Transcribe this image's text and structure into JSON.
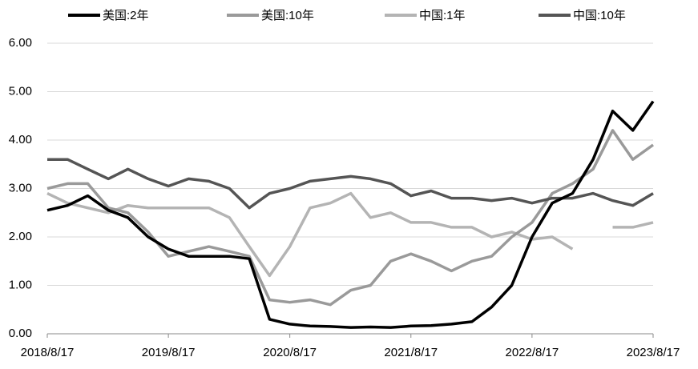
{
  "chart_data": {
    "type": "line",
    "x": [
      "2018/8/17",
      "2018/10/17",
      "2018/12/17",
      "2019/2/17",
      "2019/4/17",
      "2019/6/17",
      "2019/8/17",
      "2019/10/17",
      "2019/12/17",
      "2020/2/17",
      "2020/4/17",
      "2020/6/17",
      "2020/8/17",
      "2020/10/17",
      "2020/12/17",
      "2021/2/17",
      "2021/4/17",
      "2021/6/17",
      "2021/8/17",
      "2021/10/17",
      "2021/12/17",
      "2022/2/17",
      "2022/4/17",
      "2022/6/17",
      "2022/8/17",
      "2022/10/17",
      "2022/12/17",
      "2023/2/17",
      "2023/4/17",
      "2023/6/17",
      "2023/8/17"
    ],
    "series": [
      {
        "name": "美国:2年",
        "color": "#000000",
        "values": [
          2.55,
          2.65,
          2.85,
          2.55,
          2.4,
          2.0,
          1.75,
          1.6,
          1.6,
          1.6,
          1.55,
          0.3,
          0.2,
          0.16,
          0.15,
          0.13,
          0.14,
          0.13,
          0.16,
          0.17,
          0.2,
          0.25,
          0.55,
          1.0,
          2.0,
          2.7,
          2.9,
          3.6,
          4.6,
          4.2,
          4.8
        ]
      },
      {
        "name": "美国:10年",
        "color": "#9a9a9a",
        "values": [
          3.0,
          3.1,
          3.1,
          2.6,
          2.5,
          2.1,
          1.6,
          1.7,
          1.8,
          1.7,
          1.6,
          0.7,
          0.65,
          0.7,
          0.6,
          0.9,
          1.0,
          1.5,
          1.65,
          1.5,
          1.3,
          1.5,
          1.6,
          2.0,
          2.3,
          2.9,
          3.1,
          3.4,
          4.2,
          3.6,
          3.9
        ]
      },
      {
        "name": "中国:1年",
        "color": "#b4b4b4",
        "values": [
          2.9,
          2.7,
          2.6,
          2.5,
          2.65,
          2.6,
          2.6,
          2.6,
          2.6,
          2.4,
          1.8,
          1.2,
          1.8,
          2.6,
          2.7,
          2.9,
          2.4,
          2.5,
          2.3,
          2.3,
          2.2,
          2.2,
          2.0,
          2.1,
          1.95,
          2.0,
          1.75,
          null,
          2.2,
          2.2,
          2.3
        ]
      },
      {
        "name": "中国:10年",
        "color": "#555555",
        "values": [
          3.6,
          3.6,
          3.4,
          3.2,
          3.4,
          3.2,
          3.05,
          3.2,
          3.15,
          3.0,
          2.6,
          2.9,
          3.0,
          3.15,
          3.2,
          3.25,
          3.2,
          3.1,
          2.85,
          2.95,
          2.8,
          2.8,
          2.75,
          2.8,
          2.7,
          2.8,
          2.8,
          2.9,
          2.75,
          2.65,
          2.9
        ]
      }
    ],
    "xlim": [
      "2018/8/17",
      "2023/8/17"
    ],
    "xticks": [
      "2018/8/17",
      "2019/8/17",
      "2020/8/17",
      "2021/8/17",
      "2022/8/17",
      "2023/8/17"
    ],
    "ylim": [
      0,
      6
    ],
    "yticks": [
      {
        "value": 0,
        "label": "0.00"
      },
      {
        "value": 1,
        "label": "1.00"
      },
      {
        "value": 2,
        "label": "2.00"
      },
      {
        "value": 3,
        "label": "3.00"
      },
      {
        "value": 4,
        "label": "4.00"
      },
      {
        "value": 5,
        "label": "5.00"
      },
      {
        "value": 6,
        "label": "6.00"
      }
    ],
    "grid": true,
    "legend": "top"
  }
}
